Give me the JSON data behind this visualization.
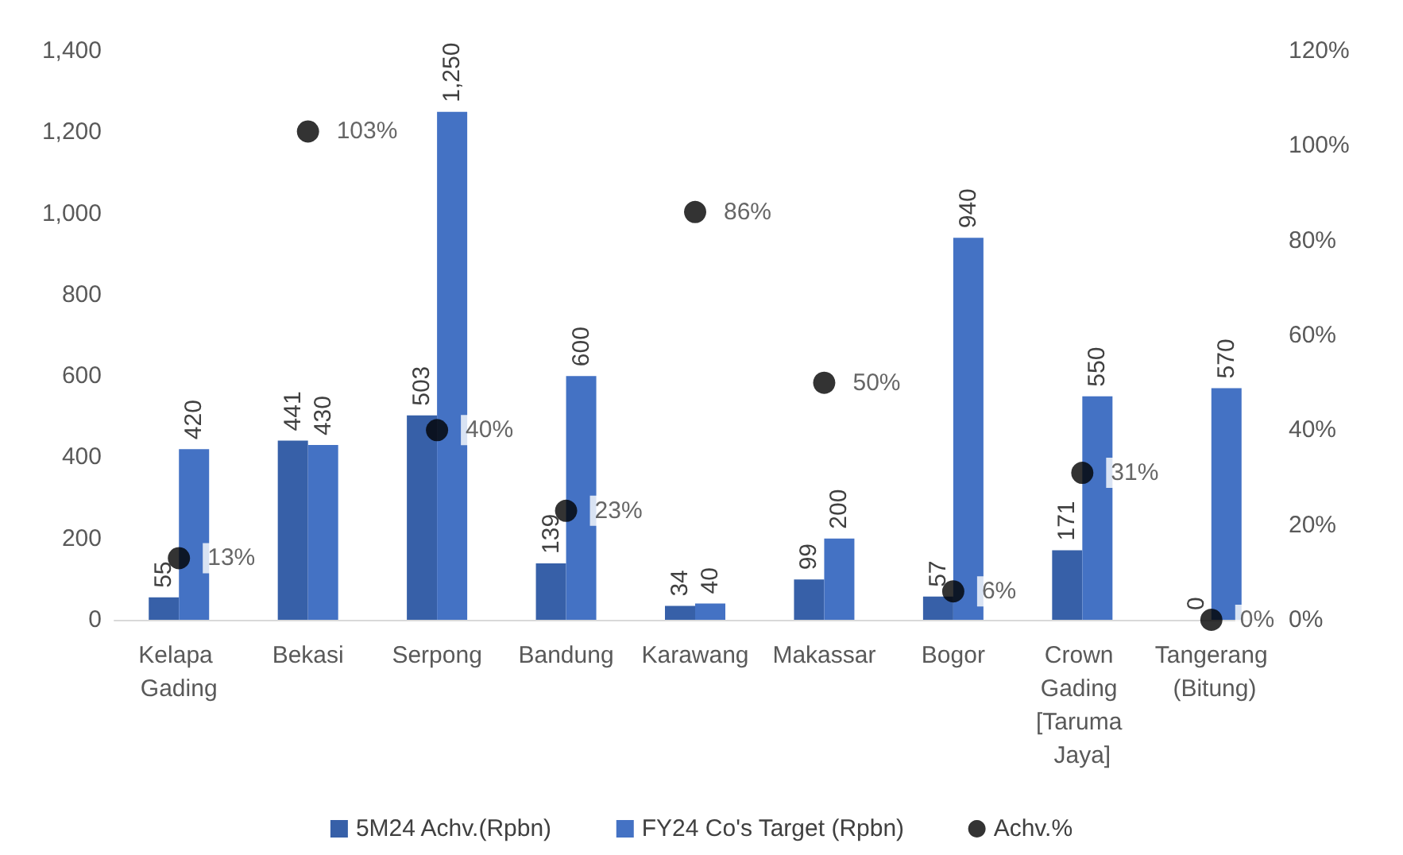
{
  "chart_data": {
    "type": "bar",
    "categories": [
      "Kelapa Gading",
      "Bekasi",
      "Serpong",
      "Bandung",
      "Karawang",
      "Makassar",
      "Bogor",
      "Crown Gading [Taruma Jaya]",
      "Tangerang (Bitung)"
    ],
    "series": [
      {
        "name": "5M24 Achv.(Rpbn)",
        "color": "#3760a8",
        "values": [
          55,
          441,
          503,
          139,
          34,
          99,
          57,
          171,
          0
        ],
        "value_labels": [
          "55",
          "441",
          "503",
          "139",
          "34",
          "99",
          "57",
          "171",
          "0"
        ]
      },
      {
        "name": "FY24 Co's Target (Rpbn)",
        "color": "#4472c4",
        "values": [
          420,
          430,
          1250,
          600,
          40,
          200,
          940,
          550,
          570
        ],
        "value_labels": [
          "420",
          "430",
          "1,250",
          "600",
          "40",
          "200",
          "940",
          "550",
          "570"
        ]
      },
      {
        "name": "Achv.%",
        "type": "scatter",
        "axis": "y2",
        "color": "#000000",
        "x": [
          "Kelapa Gading",
          "Bekasi",
          "Serpong",
          "Bandung",
          "Karawang",
          "Makassar",
          "Bogor",
          "Crown Gading [Taruma Jaya]",
          "Tangerang (Bitung)"
        ],
        "values": [
          13,
          103,
          40,
          23,
          86,
          50,
          6,
          31,
          0
        ],
        "value_labels": [
          "13%",
          "103%",
          "40%",
          "23%",
          "86%",
          "50%",
          "6%",
          "31%",
          "0%"
        ]
      }
    ],
    "ylim": [
      0,
      1400
    ],
    "yticks": [
      {
        "value": 0,
        "label": "0"
      },
      {
        "value": 200,
        "label": "200"
      },
      {
        "value": 400,
        "label": "400"
      },
      {
        "value": 600,
        "label": "600"
      },
      {
        "value": 800,
        "label": "800"
      },
      {
        "value": 1000,
        "label": "1,000"
      },
      {
        "value": 1200,
        "label": "1,200"
      },
      {
        "value": 1400,
        "label": "1,400"
      }
    ],
    "y2lim": [
      0,
      120
    ],
    "y2ticks": [
      {
        "value": 0,
        "label": "0%"
      },
      {
        "value": 20,
        "label": "20%"
      },
      {
        "value": 40,
        "label": "40%"
      },
      {
        "value": 60,
        "label": "60%"
      },
      {
        "value": 80,
        "label": "80%"
      },
      {
        "value": 100,
        "label": "100%"
      },
      {
        "value": 120,
        "label": "120%"
      }
    ],
    "marker": "circle",
    "grid": false,
    "legend": "bottom"
  }
}
